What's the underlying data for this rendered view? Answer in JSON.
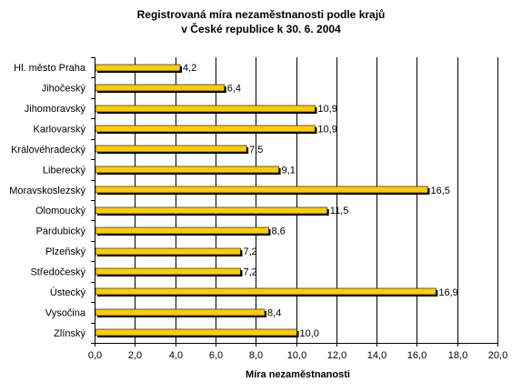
{
  "chart_data": {
    "type": "bar",
    "orientation": "horizontal",
    "title_line1": "Registrovaná míra nezaměstnanosti podle krajů",
    "title_line2": "v České republice k 30. 6. 2004",
    "xlabel": "Míra nezaměstnanosti",
    "ylabel": "",
    "categories": [
      "Hl. město Praha",
      "Jihočeský",
      "Jihomoravský",
      "Karlovarský",
      "Královéhradecký",
      "Liberecký",
      "Moravskoslezský",
      "Olomoucký",
      "Pardubický",
      "Plzeňský",
      "Středočeský",
      "Ústecký",
      "Vysočina",
      "Zlínský"
    ],
    "values": [
      4.2,
      6.4,
      10.9,
      10.9,
      7.5,
      9.1,
      16.5,
      11.5,
      8.6,
      7.2,
      7.2,
      16.9,
      8.4,
      10.0
    ],
    "value_labels": [
      "4,2",
      "6,4",
      "10,9",
      "10,9",
      "7,5",
      "9,1",
      "16,5",
      "11,5",
      "8,6",
      "7,2",
      "7,2",
      "16,9",
      "8,4",
      "10,0"
    ],
    "xlim": [
      0,
      20
    ],
    "ticks": [
      0,
      2,
      4,
      6,
      8,
      10,
      12,
      14,
      16,
      18,
      20
    ],
    "tick_labels": [
      "0,0",
      "2,0",
      "4,0",
      "6,0",
      "8,0",
      "10,0",
      "12,0",
      "14,0",
      "16,0",
      "18,0",
      "20,0"
    ],
    "grid": true,
    "legend": false,
    "colors": {
      "bar": "#FFCC00",
      "bar_shadow": "#000000",
      "grid": "#000000",
      "axis": "#000000"
    }
  }
}
